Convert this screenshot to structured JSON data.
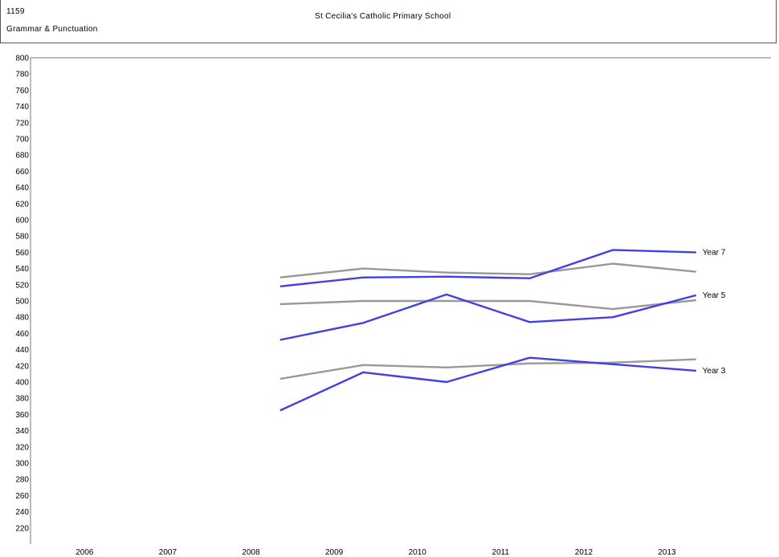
{
  "header": {
    "code": "1159",
    "subject": "Grammar & Punctuation",
    "school": "St Cecilia's Catholic Primary School"
  },
  "chart_data": {
    "type": "line",
    "x": [
      2008,
      2009,
      2010,
      2011,
      2012,
      2013
    ],
    "x_ticks": [
      "2006",
      "2007",
      "2008",
      "2009",
      "2010",
      "2011",
      "2012",
      "2013"
    ],
    "xlim": [
      2005.35,
      2014.25
    ],
    "ylim": [
      200,
      800
    ],
    "y_tick_min": 220,
    "y_tick_step": 20,
    "grid": false,
    "colors": {
      "school": "#4040e6",
      "comparison": "#999999"
    },
    "series": [
      {
        "name": "Year 7",
        "role": "school",
        "values": [
          518,
          529,
          530,
          528,
          563,
          560
        ]
      },
      {
        "role": "comparison",
        "values": [
          529,
          540,
          535,
          533,
          546,
          536
        ]
      },
      {
        "name": "Year 5",
        "role": "school",
        "values": [
          452,
          473,
          508,
          474,
          480,
          507
        ]
      },
      {
        "role": "comparison",
        "values": [
          496,
          500,
          500,
          500,
          490,
          501
        ]
      },
      {
        "name": "Year 3",
        "role": "school",
        "values": [
          365,
          412,
          400,
          430,
          422,
          414
        ]
      },
      {
        "role": "comparison",
        "values": [
          404,
          421,
          418,
          423,
          424,
          428
        ]
      }
    ]
  }
}
